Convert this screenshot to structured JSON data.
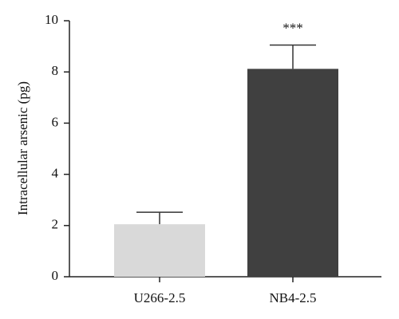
{
  "chart_data": {
    "type": "bar",
    "ylabel": "Intracellular arsenic (pg)",
    "categories": [
      "U266-2.5",
      "NB4-2.5"
    ],
    "values": [
      2.05,
      8.12
    ],
    "errors": [
      0.47,
      0.93
    ],
    "colors": [
      "#d9d9d9",
      "#404040"
    ],
    "annotations": [
      null,
      "***"
    ],
    "ylim": [
      0,
      10
    ],
    "yticks": [
      0,
      2,
      4,
      6,
      8,
      10
    ],
    "grid": false
  }
}
